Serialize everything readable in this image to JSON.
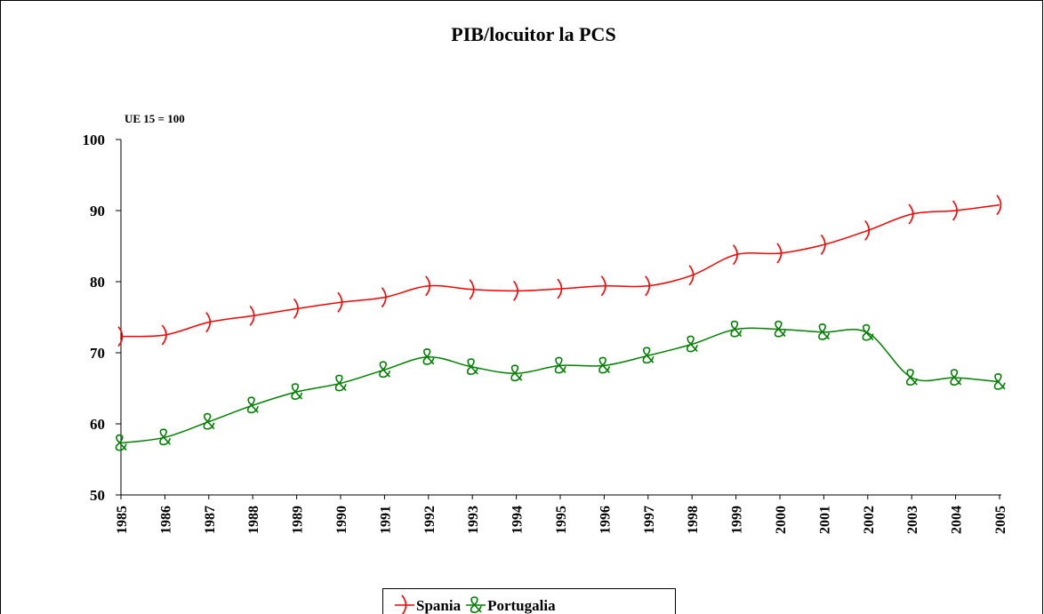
{
  "chart_data": {
    "type": "line",
    "title": "PIB/locuitor la PCS",
    "y_label": "UE 15 = 100",
    "categories": [
      "1985",
      "1986",
      "1987",
      "1988",
      "1989",
      "1990",
      "1991",
      "1992",
      "1993",
      "1994",
      "1995",
      "1996",
      "1997",
      "1998",
      "1999",
      "2000",
      "2001",
      "2002",
      "2003",
      "2004",
      "2005"
    ],
    "series": [
      {
        "name": "Spania",
        "color": "#ff0000",
        "values": [
          72.3,
          72.5,
          74.3,
          75.2,
          76.2,
          77.1,
          77.8,
          79.4,
          78.9,
          78.7,
          79.0,
          79.4,
          79.4,
          80.9,
          83.8,
          84.0,
          85.2,
          87.2,
          89.5,
          90.0,
          90.8
        ]
      },
      {
        "name": "Portugalia",
        "color": "#008000",
        "values": [
          57.3,
          58.1,
          60.3,
          62.6,
          64.5,
          65.7,
          67.6,
          69.4,
          68.0,
          67.1,
          68.2,
          68.2,
          69.6,
          71.2,
          73.3,
          73.3,
          72.9,
          72.8,
          66.5,
          66.5,
          65.9
        ]
      }
    ],
    "ylim": [
      50,
      100
    ],
    "yticks": [
      50,
      60,
      70,
      80,
      90,
      100
    ],
    "grid": false,
    "smooth": true,
    "legend": "bottom"
  }
}
